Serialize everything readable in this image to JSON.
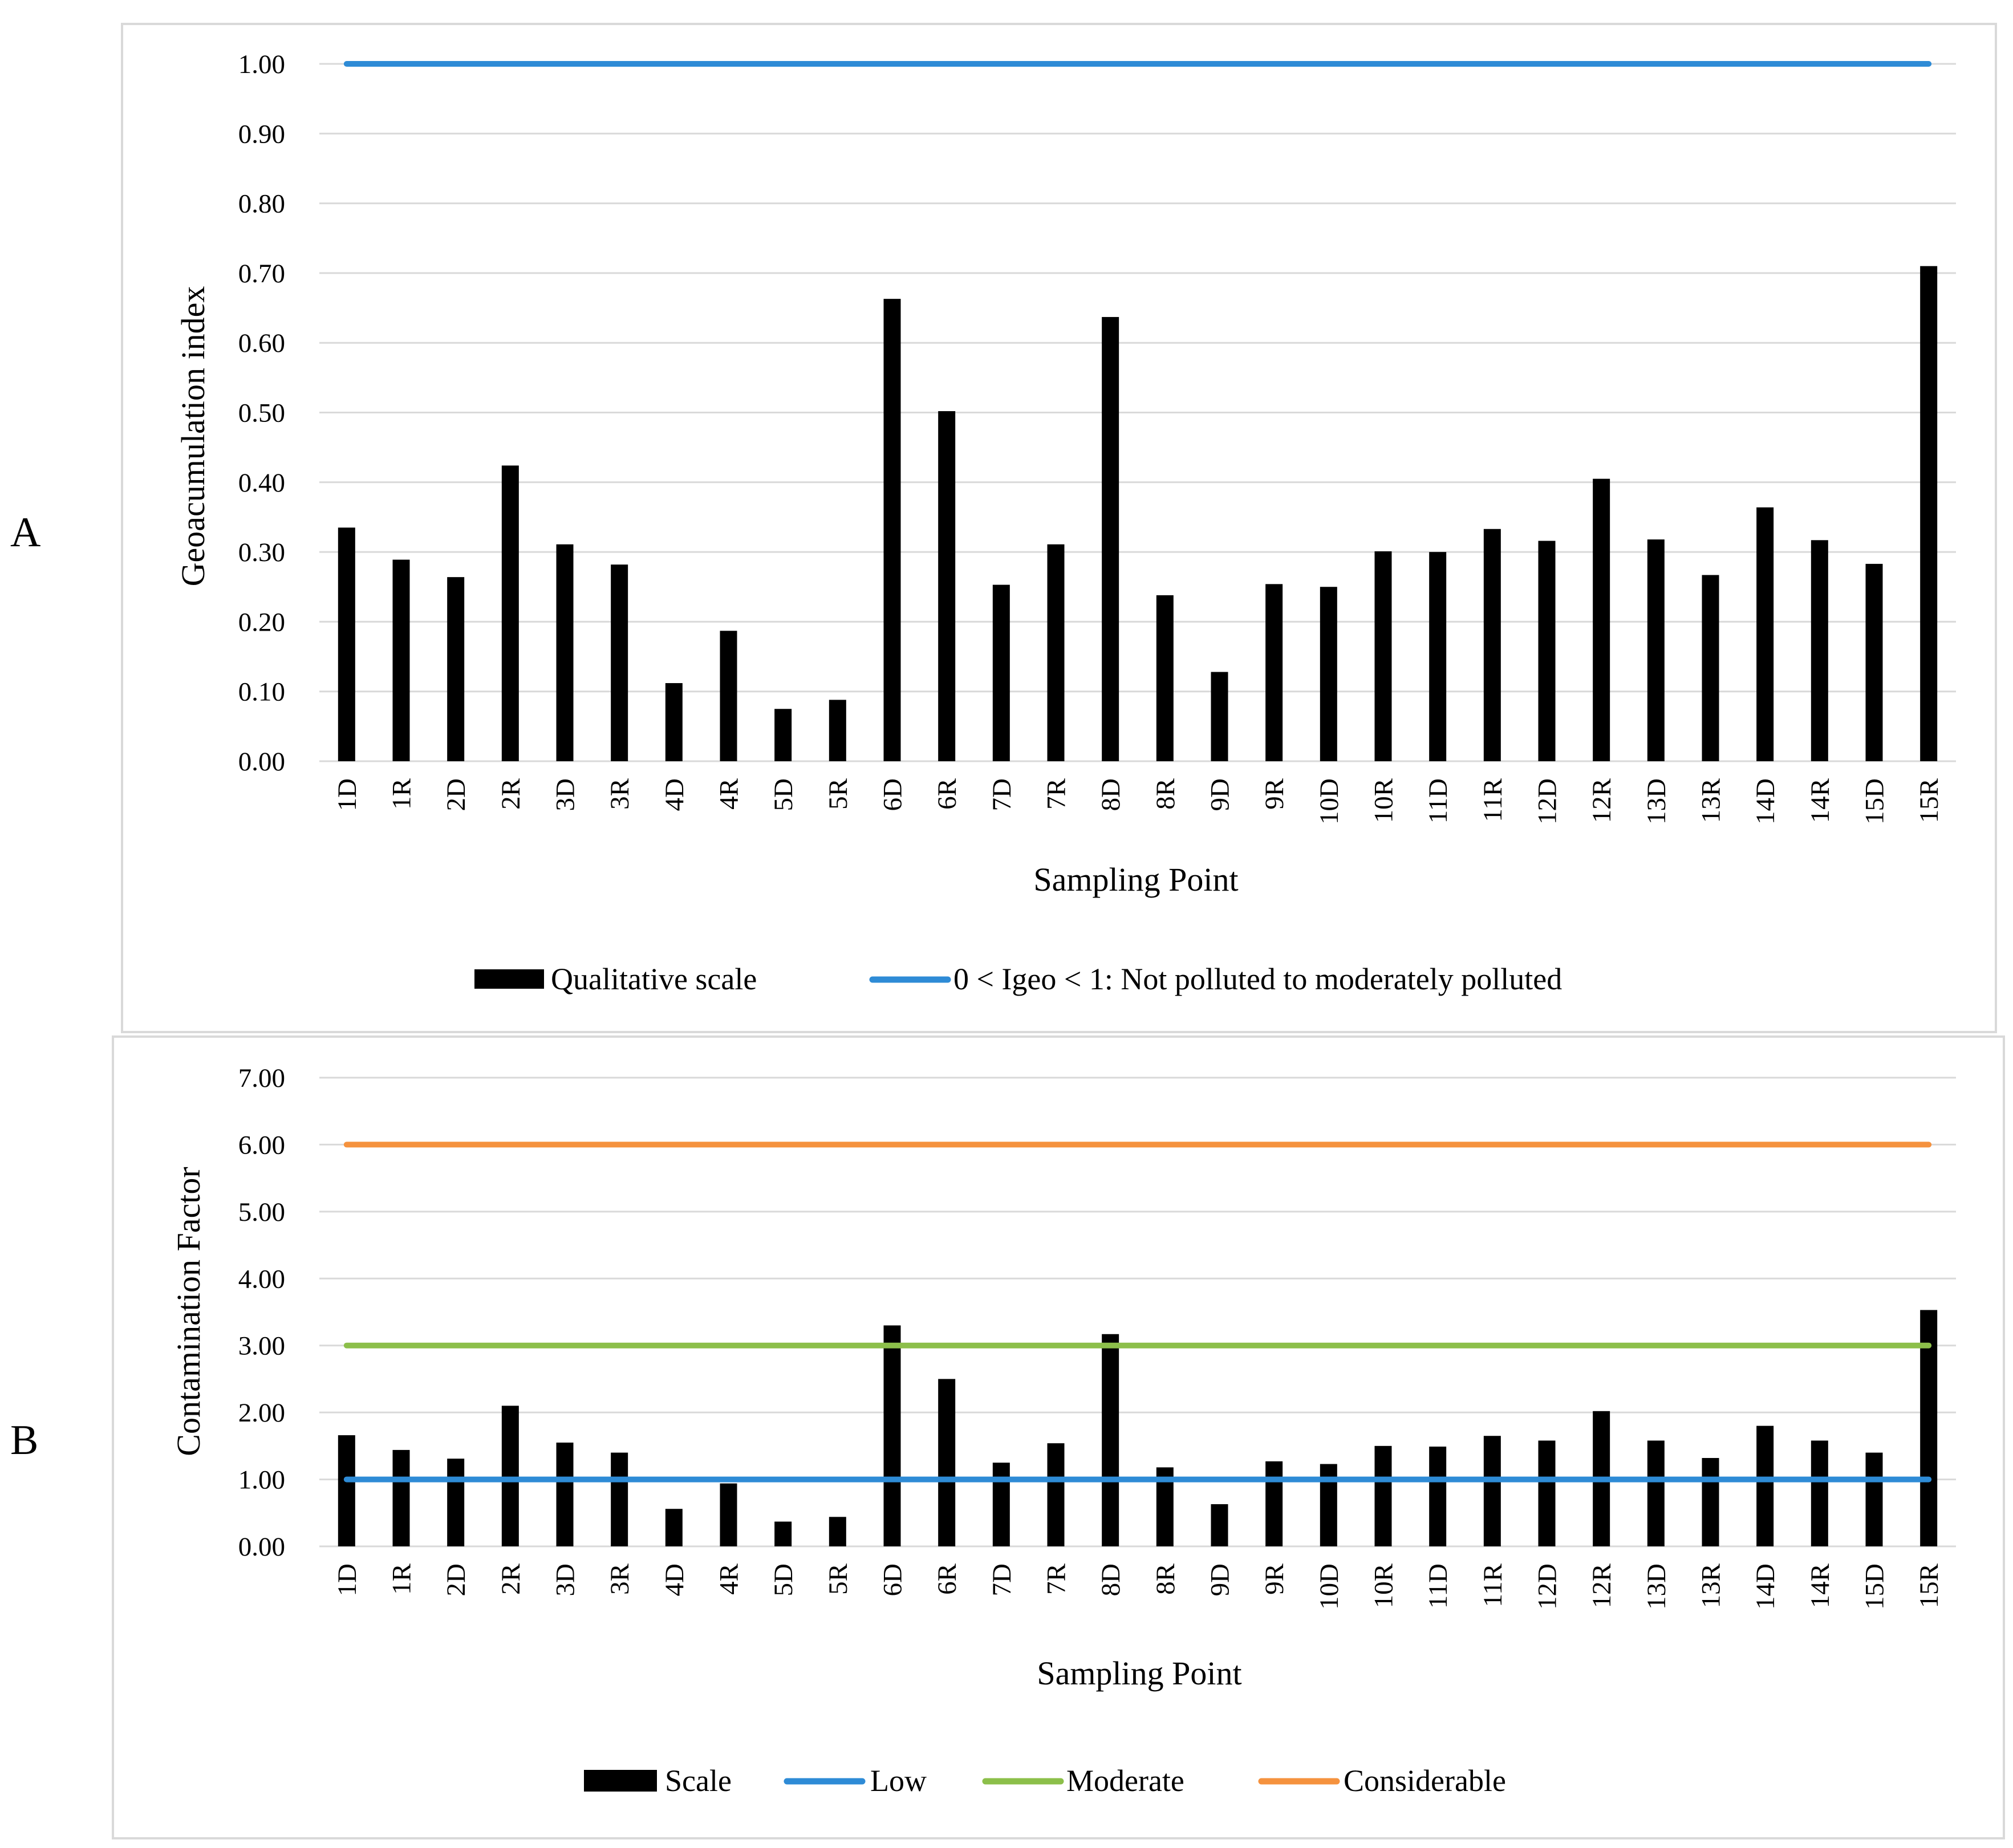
{
  "chart_data": [
    {
      "type": "bar",
      "panel_label": "A",
      "xlabel": "Sampling Point",
      "ylabel": "Geoacumulation index",
      "ylim": [
        0,
        1
      ],
      "yticks": [
        "0.00",
        "0.10",
        "0.20",
        "0.30",
        "0.40",
        "0.50",
        "0.60",
        "0.70",
        "0.80",
        "0.90",
        "1.00"
      ],
      "ytick_values": [
        0,
        0.1,
        0.2,
        0.3,
        0.4,
        0.5,
        0.6,
        0.7,
        0.8,
        0.9,
        1.0
      ],
      "categories": [
        "1D",
        "1R",
        "2D",
        "2R",
        "3D",
        "3R",
        "4D",
        "4R",
        "5D",
        "5R",
        "6D",
        "6R",
        "7D",
        "7R",
        "8D",
        "8R",
        "9D",
        "9R",
        "10D",
        "10R",
        "11D",
        "11R",
        "12D",
        "12R",
        "13D",
        "13R",
        "14D",
        "14R",
        "15D",
        "15R"
      ],
      "series": [
        {
          "name": "Qualitative scale",
          "kind": "bar",
          "color": "#000000",
          "values": [
            0.335,
            0.289,
            0.264,
            0.424,
            0.311,
            0.282,
            0.112,
            0.187,
            0.075,
            0.088,
            0.663,
            0.502,
            0.253,
            0.311,
            0.637,
            0.238,
            0.128,
            0.254,
            0.25,
            0.301,
            0.3,
            0.333,
            0.316,
            0.405,
            0.318,
            0.267,
            0.364,
            0.317,
            0.283,
            0.71
          ]
        },
        {
          "name": "0 < Igeo < 1: Not polluted to moderately polluted",
          "kind": "line",
          "color": "#2E8BD6",
          "value": 1.0
        }
      ],
      "grid": true,
      "legend_position": "bottom"
    },
    {
      "type": "bar",
      "panel_label": "B",
      "xlabel": "Sampling Point",
      "ylabel": "Contamination Factor",
      "ylim": [
        0,
        7
      ],
      "yticks": [
        "0.00",
        "1.00",
        "2.00",
        "3.00",
        "4.00",
        "5.00",
        "6.00",
        "7.00"
      ],
      "ytick_values": [
        0,
        1,
        2,
        3,
        4,
        5,
        6,
        7
      ],
      "categories": [
        "1D",
        "1R",
        "2D",
        "2R",
        "3D",
        "3R",
        "4D",
        "4R",
        "5D",
        "5R",
        "6D",
        "6R",
        "7D",
        "7R",
        "8D",
        "8R",
        "9D",
        "9R",
        "10D",
        "10R",
        "11D",
        "11R",
        "12D",
        "12R",
        "13D",
        "13R",
        "14D",
        "14R",
        "15D",
        "15R"
      ],
      "series": [
        {
          "name": "Scale",
          "kind": "bar",
          "color": "#000000",
          "values": [
            1.66,
            1.44,
            1.31,
            2.1,
            1.55,
            1.4,
            0.56,
            0.94,
            0.37,
            0.44,
            3.3,
            2.5,
            1.25,
            1.54,
            3.17,
            1.18,
            0.63,
            1.27,
            1.23,
            1.5,
            1.49,
            1.65,
            1.58,
            2.02,
            1.58,
            1.32,
            1.8,
            1.58,
            1.4,
            3.53
          ]
        },
        {
          "name": "Low",
          "kind": "line",
          "color": "#2E8BD6",
          "value": 1.0
        },
        {
          "name": "Moderate",
          "kind": "line",
          "color": "#8CBF4A",
          "value": 3.0
        },
        {
          "name": "Considerable",
          "kind": "line",
          "color": "#F5923E",
          "value": 6.0
        }
      ],
      "grid": true,
      "legend_position": "bottom"
    }
  ]
}
